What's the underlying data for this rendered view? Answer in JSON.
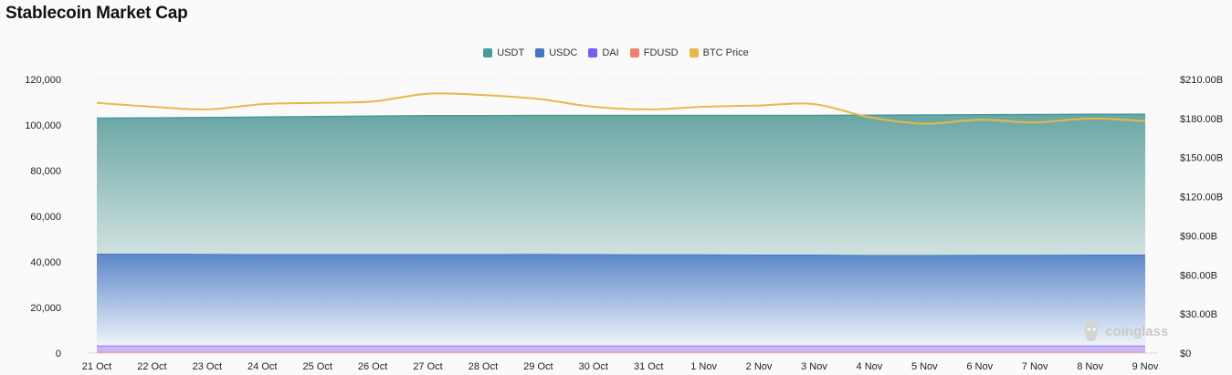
{
  "page_title": "Stablecoin Market Cap",
  "watermark": "coinglass",
  "colors": {
    "USDT": "#4a9a9a",
    "USDC": "#4477c4",
    "DAI": "#7b5cf0",
    "FDUSD": "#f08070",
    "BTC Price": "#e8b84a"
  },
  "chart_data": {
    "type": "area",
    "title": "Stablecoin Market Cap",
    "legend_position": "top-center",
    "grid": true,
    "x": [
      "21 Oct",
      "22 Oct",
      "23 Oct",
      "24 Oct",
      "25 Oct",
      "26 Oct",
      "27 Oct",
      "28 Oct",
      "29 Oct",
      "30 Oct",
      "31 Oct",
      "1 Nov",
      "2 Nov",
      "3 Nov",
      "4 Nov",
      "5 Nov",
      "6 Nov",
      "7 Nov",
      "8 Nov",
      "9 Nov"
    ],
    "y_left_ticks": [
      "0",
      "20,000",
      "40,000",
      "60,000",
      "80,000",
      "100,000",
      "120,000"
    ],
    "y_right_ticks": [
      "$0",
      "$30.00B",
      "$60.00B",
      "$90.00B",
      "$120.00B",
      "$150.00B",
      "$180.00B",
      "$210.00B"
    ],
    "ylim_left": [
      0,
      120000
    ],
    "ylim_right": [
      0,
      210
    ],
    "stacked": true,
    "series": [
      {
        "name": "FDUSD",
        "axis": "left",
        "values": [
          500,
          500,
          500,
          500,
          500,
          500,
          500,
          500,
          500,
          500,
          500,
          500,
          500,
          500,
          500,
          500,
          500,
          500,
          500,
          500
        ]
      },
      {
        "name": "DAI",
        "axis": "left",
        "values": [
          2800,
          2800,
          2800,
          2800,
          2800,
          2800,
          2800,
          2800,
          2800,
          2800,
          2800,
          2800,
          2800,
          2800,
          2800,
          2800,
          2800,
          2800,
          2800,
          2800
        ]
      },
      {
        "name": "USDC",
        "axis": "left",
        "values": [
          40300,
          40300,
          40200,
          40100,
          40100,
          40100,
          40100,
          40100,
          40200,
          40100,
          40000,
          40000,
          39900,
          39900,
          39700,
          39700,
          39800,
          39800,
          39900,
          39900
        ]
      },
      {
        "name": "USDT",
        "axis": "left",
        "values": [
          59400,
          59500,
          59800,
          60100,
          60300,
          60500,
          60700,
          60700,
          60700,
          60800,
          60900,
          60900,
          61000,
          61000,
          61300,
          61400,
          61400,
          61500,
          61500,
          61500
        ]
      },
      {
        "name": "BTC Price",
        "axis": "right",
        "values": [
          192,
          189,
          187,
          191,
          192,
          193,
          199,
          198,
          195,
          189,
          187,
          189,
          190,
          191,
          181,
          176,
          179,
          177,
          180,
          178
        ]
      }
    ]
  }
}
